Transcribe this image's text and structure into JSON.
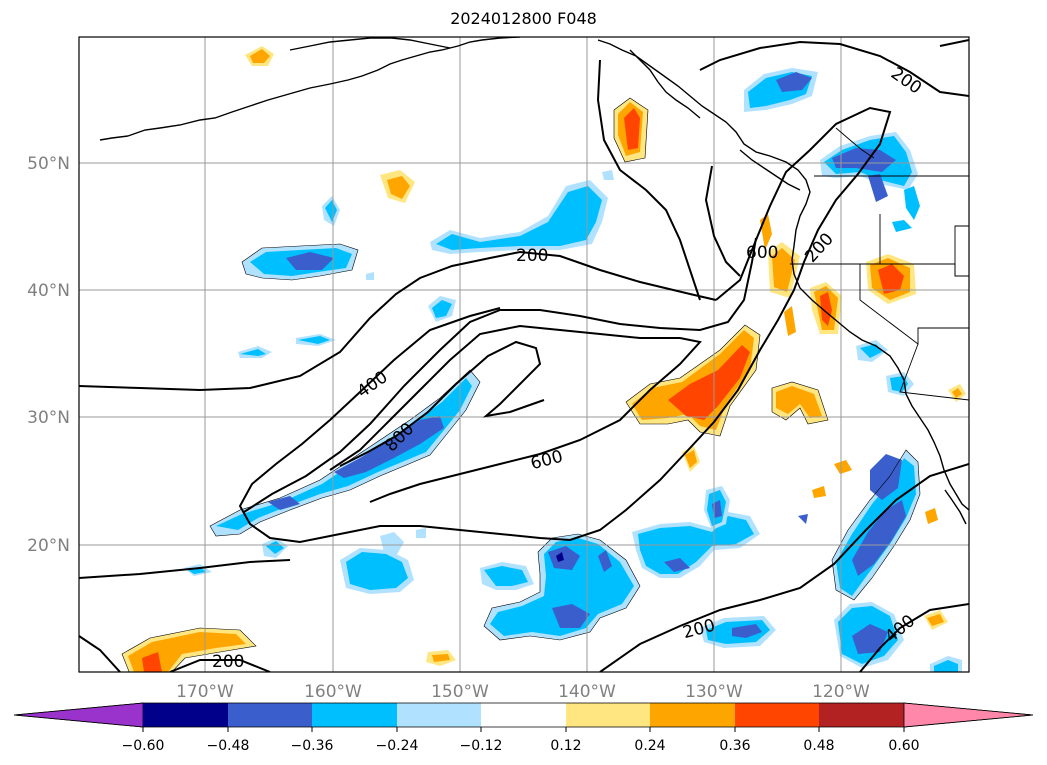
{
  "title": "2024012800 F048",
  "map": {
    "lat_labels": [
      "50°N",
      "40°N",
      "30°N",
      "20°N"
    ],
    "lon_labels": [
      "170°W",
      "160°W",
      "150°W",
      "140°W",
      "130°W",
      "120°W"
    ],
    "contour_labels": [
      "200",
      "200",
      "200",
      "200",
      "400",
      "400",
      "600",
      "600",
      "800"
    ]
  },
  "colorbar": {
    "tick_labels": [
      "−0.60",
      "−0.48",
      "−0.36",
      "−0.24",
      "−0.12",
      "0.12",
      "0.24",
      "0.36",
      "0.48",
      "0.60"
    ],
    "colors": [
      "#9933cc",
      "#00008b",
      "#3a5fcd",
      "#00bfff",
      "#b0e2ff",
      "#ffffff",
      "#ffe680",
      "#ffa500",
      "#ff4500",
      "#b22222",
      "#ff88aa"
    ]
  }
}
